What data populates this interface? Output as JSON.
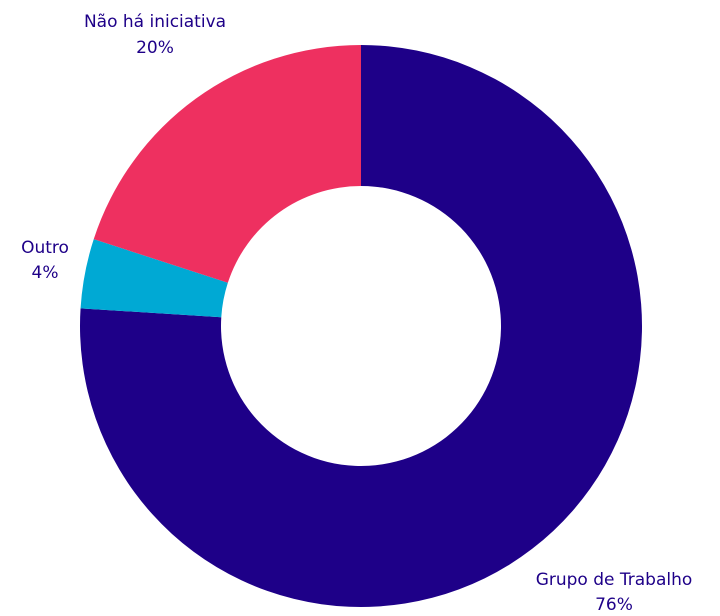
{
  "chart_data": {
    "type": "donut",
    "categories": [
      "Grupo de Trabalho",
      "Outro",
      "Não há iniciativa"
    ],
    "values": [
      76,
      4,
      20
    ],
    "value_labels": [
      "76%",
      "4%",
      "20%"
    ],
    "colors": [
      "#1e0088",
      "#00a9d4",
      "#ee3060"
    ]
  }
}
